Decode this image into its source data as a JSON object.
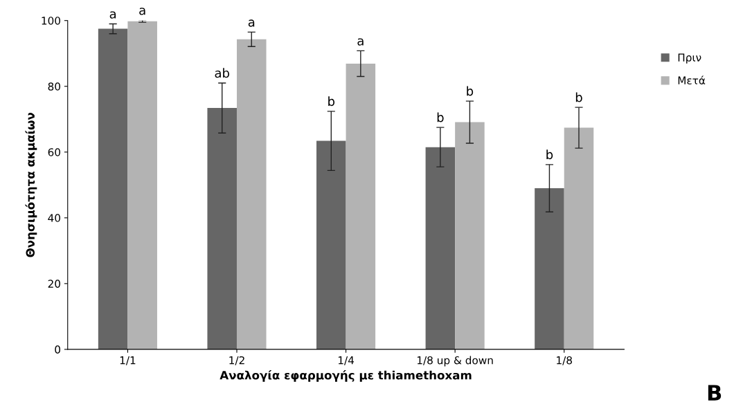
{
  "chart_data": {
    "type": "bar",
    "xlabel": "Αναλογία εφαρμογής με thiamethoxam",
    "ylabel": "Θνησιμότητα ακμαίων",
    "categories": [
      "1/1",
      "1/2",
      "1/4",
      "1/8 up & down",
      "1/8"
    ],
    "series": [
      {
        "name": "Πριν",
        "color": "#666666",
        "values": [
          97.5,
          73.4,
          63.4,
          61.5,
          49.0
        ],
        "errors": [
          1.5,
          7.6,
          9.0,
          6.0,
          7.2
        ]
      },
      {
        "name": "Μετά",
        "color": "#b3b3b3",
        "values": [
          99.8,
          94.3,
          86.9,
          69.1,
          67.4
        ],
        "errors": [
          0.3,
          2.2,
          3.9,
          6.4,
          6.2
        ]
      }
    ],
    "ylim": [
      0,
      100
    ],
    "yticks": [
      0,
      20,
      40,
      60,
      80,
      100
    ],
    "grid": false,
    "legend": "right",
    "annotations": [
      "a",
      "a",
      "ab",
      "a",
      "b",
      "a",
      "b",
      "b",
      "b",
      "b",
      "B"
    ]
  }
}
